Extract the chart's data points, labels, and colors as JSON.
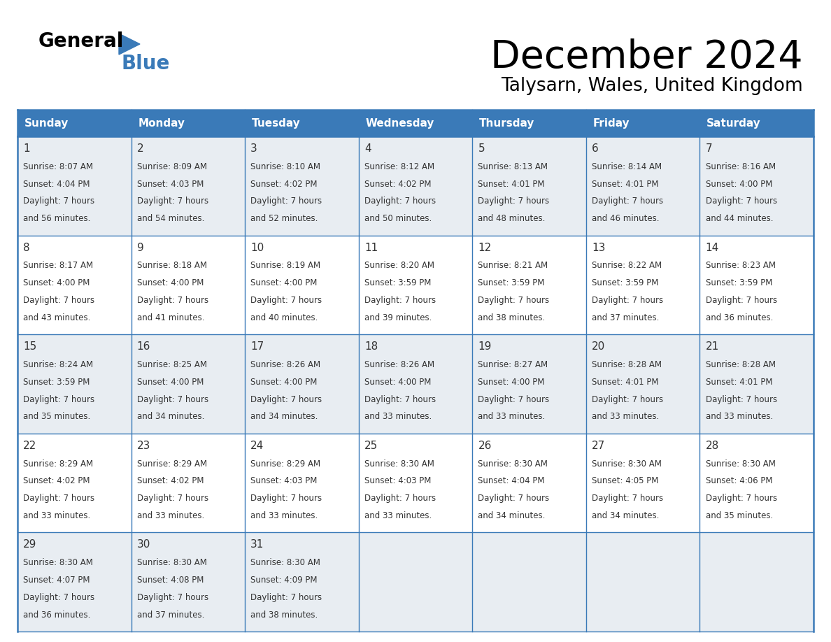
{
  "title": "December 2024",
  "subtitle": "Talysarn, Wales, United Kingdom",
  "days_of_week": [
    "Sunday",
    "Monday",
    "Tuesday",
    "Wednesday",
    "Thursday",
    "Friday",
    "Saturday"
  ],
  "header_bg": "#3a7ab8",
  "header_text": "#ffffff",
  "row_bg_odd": "#e8edf2",
  "row_bg_even": "#ffffff",
  "border_color": "#3a7ab8",
  "text_color": "#333333",
  "calendar": [
    [
      {
        "day": "1",
        "sunrise": "8:07 AM",
        "sunset": "4:04 PM",
        "daylight_h": "7 hours",
        "daylight_m": "56 minutes"
      },
      {
        "day": "2",
        "sunrise": "8:09 AM",
        "sunset": "4:03 PM",
        "daylight_h": "7 hours",
        "daylight_m": "54 minutes"
      },
      {
        "day": "3",
        "sunrise": "8:10 AM",
        "sunset": "4:02 PM",
        "daylight_h": "7 hours",
        "daylight_m": "52 minutes"
      },
      {
        "day": "4",
        "sunrise": "8:12 AM",
        "sunset": "4:02 PM",
        "daylight_h": "7 hours",
        "daylight_m": "50 minutes"
      },
      {
        "day": "5",
        "sunrise": "8:13 AM",
        "sunset": "4:01 PM",
        "daylight_h": "7 hours",
        "daylight_m": "48 minutes"
      },
      {
        "day": "6",
        "sunrise": "8:14 AM",
        "sunset": "4:01 PM",
        "daylight_h": "7 hours",
        "daylight_m": "46 minutes"
      },
      {
        "day": "7",
        "sunrise": "8:16 AM",
        "sunset": "4:00 PM",
        "daylight_h": "7 hours",
        "daylight_m": "44 minutes"
      }
    ],
    [
      {
        "day": "8",
        "sunrise": "8:17 AM",
        "sunset": "4:00 PM",
        "daylight_h": "7 hours",
        "daylight_m": "43 minutes"
      },
      {
        "day": "9",
        "sunrise": "8:18 AM",
        "sunset": "4:00 PM",
        "daylight_h": "7 hours",
        "daylight_m": "41 minutes"
      },
      {
        "day": "10",
        "sunrise": "8:19 AM",
        "sunset": "4:00 PM",
        "daylight_h": "7 hours",
        "daylight_m": "40 minutes"
      },
      {
        "day": "11",
        "sunrise": "8:20 AM",
        "sunset": "3:59 PM",
        "daylight_h": "7 hours",
        "daylight_m": "39 minutes"
      },
      {
        "day": "12",
        "sunrise": "8:21 AM",
        "sunset": "3:59 PM",
        "daylight_h": "7 hours",
        "daylight_m": "38 minutes"
      },
      {
        "day": "13",
        "sunrise": "8:22 AM",
        "sunset": "3:59 PM",
        "daylight_h": "7 hours",
        "daylight_m": "37 minutes"
      },
      {
        "day": "14",
        "sunrise": "8:23 AM",
        "sunset": "3:59 PM",
        "daylight_h": "7 hours",
        "daylight_m": "36 minutes"
      }
    ],
    [
      {
        "day": "15",
        "sunrise": "8:24 AM",
        "sunset": "3:59 PM",
        "daylight_h": "7 hours",
        "daylight_m": "35 minutes"
      },
      {
        "day": "16",
        "sunrise": "8:25 AM",
        "sunset": "4:00 PM",
        "daylight_h": "7 hours",
        "daylight_m": "34 minutes"
      },
      {
        "day": "17",
        "sunrise": "8:26 AM",
        "sunset": "4:00 PM",
        "daylight_h": "7 hours",
        "daylight_m": "34 minutes"
      },
      {
        "day": "18",
        "sunrise": "8:26 AM",
        "sunset": "4:00 PM",
        "daylight_h": "7 hours",
        "daylight_m": "33 minutes"
      },
      {
        "day": "19",
        "sunrise": "8:27 AM",
        "sunset": "4:00 PM",
        "daylight_h": "7 hours",
        "daylight_m": "33 minutes"
      },
      {
        "day": "20",
        "sunrise": "8:28 AM",
        "sunset": "4:01 PM",
        "daylight_h": "7 hours",
        "daylight_m": "33 minutes"
      },
      {
        "day": "21",
        "sunrise": "8:28 AM",
        "sunset": "4:01 PM",
        "daylight_h": "7 hours",
        "daylight_m": "33 minutes"
      }
    ],
    [
      {
        "day": "22",
        "sunrise": "8:29 AM",
        "sunset": "4:02 PM",
        "daylight_h": "7 hours",
        "daylight_m": "33 minutes"
      },
      {
        "day": "23",
        "sunrise": "8:29 AM",
        "sunset": "4:02 PM",
        "daylight_h": "7 hours",
        "daylight_m": "33 minutes"
      },
      {
        "day": "24",
        "sunrise": "8:29 AM",
        "sunset": "4:03 PM",
        "daylight_h": "7 hours",
        "daylight_m": "33 minutes"
      },
      {
        "day": "25",
        "sunrise": "8:30 AM",
        "sunset": "4:03 PM",
        "daylight_h": "7 hours",
        "daylight_m": "33 minutes"
      },
      {
        "day": "26",
        "sunrise": "8:30 AM",
        "sunset": "4:04 PM",
        "daylight_h": "7 hours",
        "daylight_m": "34 minutes"
      },
      {
        "day": "27",
        "sunrise": "8:30 AM",
        "sunset": "4:05 PM",
        "daylight_h": "7 hours",
        "daylight_m": "34 minutes"
      },
      {
        "day": "28",
        "sunrise": "8:30 AM",
        "sunset": "4:06 PM",
        "daylight_h": "7 hours",
        "daylight_m": "35 minutes"
      }
    ],
    [
      {
        "day": "29",
        "sunrise": "8:30 AM",
        "sunset": "4:07 PM",
        "daylight_h": "7 hours",
        "daylight_m": "36 minutes"
      },
      {
        "day": "30",
        "sunrise": "8:30 AM",
        "sunset": "4:08 PM",
        "daylight_h": "7 hours",
        "daylight_m": "37 minutes"
      },
      {
        "day": "31",
        "sunrise": "8:30 AM",
        "sunset": "4:09 PM",
        "daylight_h": "7 hours",
        "daylight_m": "38 minutes"
      },
      null,
      null,
      null,
      null
    ]
  ]
}
